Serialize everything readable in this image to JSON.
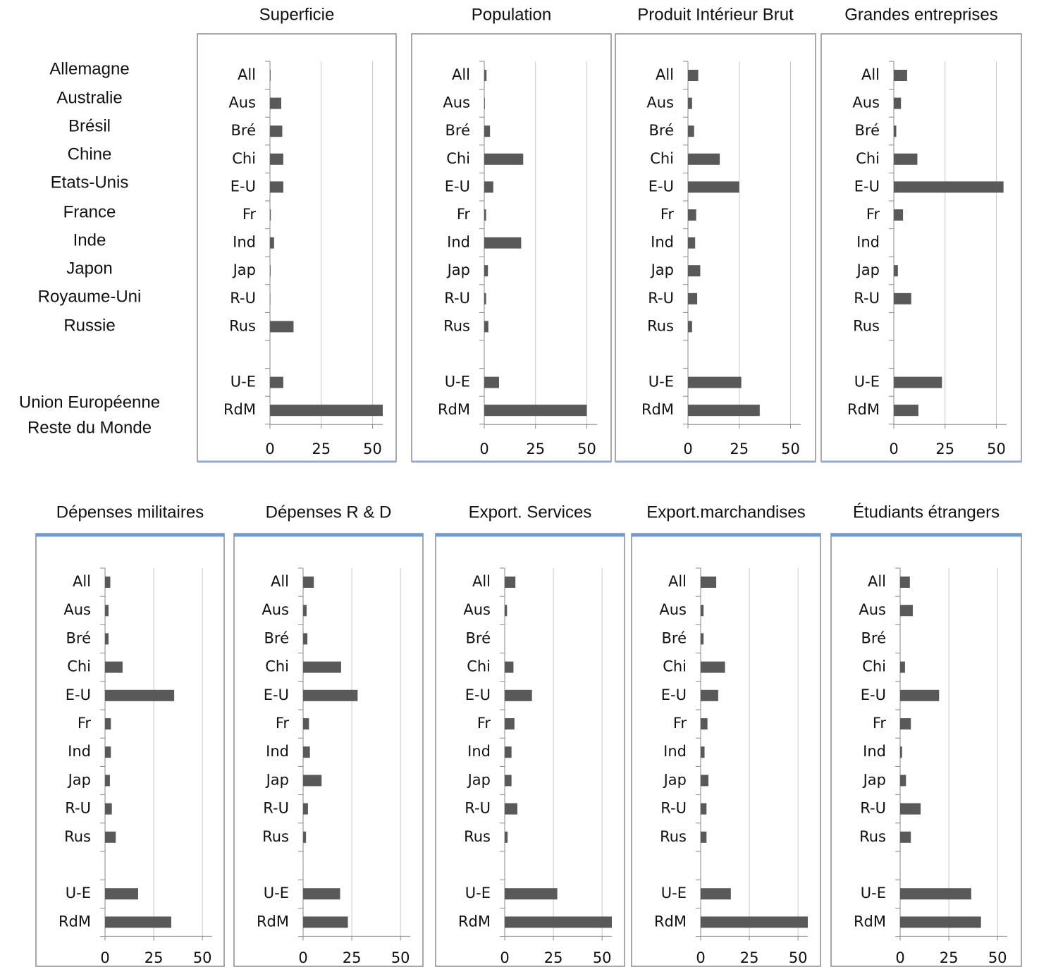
{
  "key": {
    "names": [
      "Allemagne",
      "Australie",
      "Brésil",
      "Chine",
      "Etats-Unis",
      "France",
      "Inde",
      "Japon",
      "Royaume-Uni",
      "Russie",
      "Union Européenne",
      "Reste du Monde"
    ]
  },
  "chart_data": [
    {
      "type": "bar",
      "title": "Superficie",
      "categories": [
        "All",
        "Aus",
        "Bré",
        "Chi",
        "E-U",
        "Fr",
        "Ind",
        "Jap",
        "R-U",
        "Rus",
        null,
        "U-E",
        "RdM"
      ],
      "values": [
        0.3,
        5.5,
        6,
        6.5,
        6.5,
        0.4,
        2,
        0.3,
        0.2,
        11.5,
        null,
        6.5,
        55
      ],
      "color": "#595959",
      "xlim": [
        0,
        55
      ],
      "xticks": [
        0,
        25,
        50
      ],
      "grid": true
    },
    {
      "type": "bar",
      "title": "Population",
      "categories": [
        "All",
        "Aus",
        "Bré",
        "Chi",
        "E-U",
        "Fr",
        "Ind",
        "Jap",
        "R-U",
        "Rus",
        null,
        "U-E",
        "RdM"
      ],
      "values": [
        1.1,
        0.3,
        2.8,
        19,
        4.4,
        0.9,
        18,
        1.8,
        0.9,
        2,
        null,
        7.2,
        50
      ],
      "color": "#595959",
      "xlim": [
        0,
        55
      ],
      "xticks": [
        0,
        25,
        50
      ],
      "grid": true
    },
    {
      "type": "bar",
      "title": "Produit Intérieur Brut",
      "categories": [
        "All",
        "Aus",
        "Bré",
        "Chi",
        "E-U",
        "Fr",
        "Ind",
        "Jap",
        "R-U",
        "Rus",
        null,
        "U-E",
        "RdM"
      ],
      "values": [
        5,
        2,
        3,
        15.5,
        25,
        4,
        3.5,
        6,
        4.5,
        2,
        null,
        26,
        35
      ],
      "color": "#595959",
      "xlim": [
        0,
        55
      ],
      "xticks": [
        0,
        25,
        50
      ],
      "grid": true
    },
    {
      "type": "bar",
      "title": "Grandes entreprises",
      "categories": [
        "All",
        "Aus",
        "Bré",
        "Chi",
        "E-U",
        "Fr",
        "Ind",
        "Jap",
        "R-U",
        "Rus",
        null,
        "U-E",
        "RdM"
      ],
      "values": [
        6.5,
        3.5,
        1.2,
        11.5,
        53.5,
        4.5,
        0,
        2,
        8.5,
        0,
        null,
        23.5,
        12
      ],
      "color": "#595959",
      "xlim": [
        0,
        55
      ],
      "xticks": [
        0,
        25,
        50
      ],
      "grid": true
    },
    {
      "type": "bar",
      "title": "Dépenses militaires",
      "categories": [
        "All",
        "Aus",
        "Bré",
        "Chi",
        "E-U",
        "Fr",
        "Ind",
        "Jap",
        "R-U",
        "Rus",
        null,
        "U-E",
        "RdM"
      ],
      "values": [
        2.7,
        1.8,
        1.8,
        9,
        35.5,
        3,
        3,
        2.5,
        3.5,
        5.5,
        null,
        17,
        34
      ],
      "color": "#595959",
      "xlim": [
        0,
        55
      ],
      "xticks": [
        0,
        25,
        50
      ],
      "grid": true
    },
    {
      "type": "bar",
      "title": "Dépenses R & D",
      "categories": [
        "All",
        "Aus",
        "Bré",
        "Chi",
        "E-U",
        "Fr",
        "Ind",
        "Jap",
        "R-U",
        "Rus",
        null,
        "U-E",
        "RdM"
      ],
      "values": [
        5.5,
        1.8,
        2.2,
        19.5,
        28,
        3,
        3.5,
        9.5,
        2.5,
        1.5,
        null,
        19,
        23
      ],
      "color": "#595959",
      "xlim": [
        0,
        55
      ],
      "xticks": [
        0,
        25,
        50
      ],
      "grid": true
    },
    {
      "type": "bar",
      "title": "Export. Services",
      "categories": [
        "All",
        "Aus",
        "Bré",
        "Chi",
        "E-U",
        "Fr",
        "Ind",
        "Jap",
        "R-U",
        "Rus",
        null,
        "U-E",
        "RdM"
      ],
      "values": [
        5.5,
        1.2,
        0,
        4.5,
        14,
        5,
        3.5,
        3.5,
        6.5,
        1.5,
        null,
        27,
        55
      ],
      "color": "#595959",
      "xlim": [
        0,
        55
      ],
      "xticks": [
        0,
        25,
        50
      ],
      "grid": true
    },
    {
      "type": "bar",
      "title": "Export.marchandises",
      "categories": [
        "All",
        "Aus",
        "Bré",
        "Chi",
        "E-U",
        "Fr",
        "Ind",
        "Jap",
        "R-U",
        "Rus",
        null,
        "U-E",
        "RdM"
      ],
      "values": [
        8,
        1.5,
        1.5,
        12.5,
        9,
        3.5,
        2,
        4,
        3,
        3,
        null,
        15.5,
        55
      ],
      "color": "#595959",
      "xlim": [
        0,
        55
      ],
      "xticks": [
        0,
        25,
        50
      ],
      "grid": true
    },
    {
      "type": "bar",
      "title": "Étudiants étrangers",
      "categories": [
        "All",
        "Aus",
        "Bré",
        "Chi",
        "E-U",
        "Fr",
        "Ind",
        "Jap",
        "R-U",
        "Rus",
        null,
        "U-E",
        "RdM"
      ],
      "values": [
        5,
        6.5,
        0,
        2.5,
        20,
        5.5,
        1,
        3,
        10.5,
        5.5,
        null,
        36.5,
        41.5
      ],
      "color": "#595959",
      "xlim": [
        0,
        55
      ],
      "xticks": [
        0,
        25,
        50
      ],
      "grid": true
    }
  ]
}
